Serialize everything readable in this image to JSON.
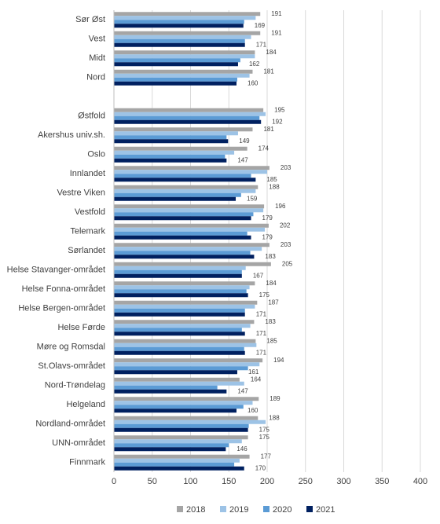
{
  "chart_data": {
    "type": "hbar",
    "categories": [
      "Sør Øst",
      "Vest",
      "Midt",
      "Nord",
      null,
      "Østfold",
      "Akershus univ.sh.",
      "Oslo",
      "Innlandet",
      "Vestre Viken",
      "Vestfold",
      "Telemark",
      "Sørlandet",
      "Helse Stavanger-området",
      "Helse Fonna-området",
      "Helse Bergen-området",
      "Helse Førde",
      "Møre og Romsdal",
      "St.Olavs-området",
      "Nord-Trøndelag",
      "Helgeland",
      "Nordland-området",
      "UNN-området",
      "Finnmark"
    ],
    "series": [
      {
        "name": "2018",
        "color": "#a5a5a5",
        "show_labels": true,
        "values": [
          191,
          191,
          184,
          181,
          null,
          195,
          181,
          174,
          203,
          188,
          196,
          202,
          203,
          205,
          184,
          187,
          183,
          185,
          194,
          164,
          189,
          188,
          175,
          177
        ]
      },
      {
        "name": "2019",
        "color": "#9dc3e6",
        "show_labels": false,
        "values": [
          185,
          179,
          184,
          177,
          null,
          198,
          162,
          157,
          200,
          185,
          195,
          197,
          193,
          172,
          177,
          184,
          178,
          186,
          190,
          170,
          181,
          198,
          167,
          164
        ]
      },
      {
        "name": "2020",
        "color": "#5b9bd5",
        "show_labels": false,
        "values": [
          170,
          171,
          165,
          161,
          null,
          190,
          147,
          145,
          179,
          166,
          182,
          174,
          178,
          167,
          173,
          171,
          167,
          170,
          175,
          135,
          169,
          176,
          150,
          157
        ]
      },
      {
        "name": "2021",
        "color": "#002060",
        "show_labels": true,
        "values": [
          169,
          171,
          162,
          160,
          null,
          192,
          149,
          147,
          185,
          159,
          179,
          179,
          183,
          167,
          175,
          171,
          171,
          171,
          161,
          147,
          160,
          175,
          146,
          170
        ]
      }
    ],
    "xlim": [
      0,
      400
    ],
    "xticks": [
      0,
      50,
      100,
      150,
      200,
      250,
      300,
      350,
      400
    ],
    "grid": true,
    "legend": "bottom"
  }
}
